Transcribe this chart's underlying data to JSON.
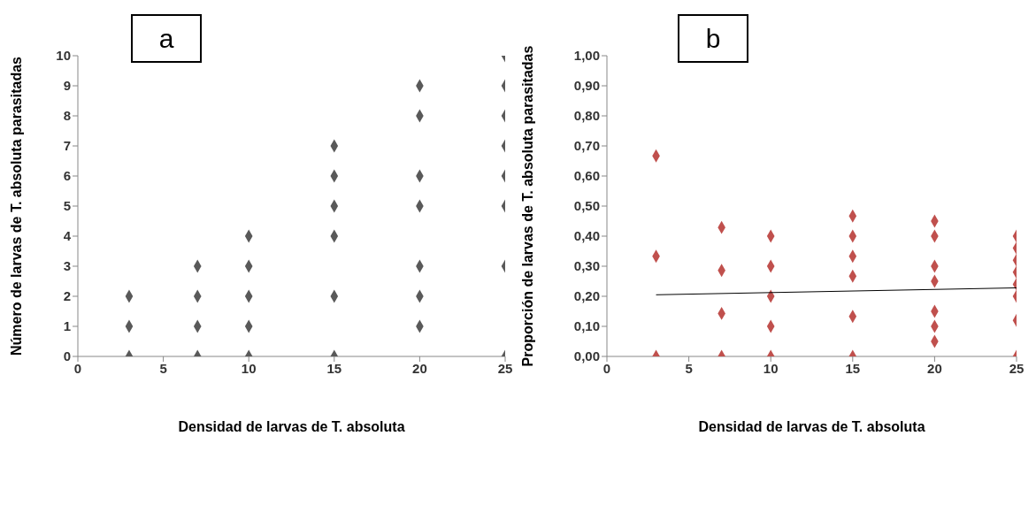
{
  "chart_data": [
    {
      "type": "scatter",
      "xlabel": "Densidad de larvas de T. absoluta",
      "ylabel": "Número  de larvas de T. absoluta parasitadas",
      "annotations": [
        "a"
      ],
      "marker": "diamond",
      "grid": false,
      "xlim": [
        0,
        25
      ],
      "xticks": [
        0,
        5,
        10,
        15,
        20,
        25
      ],
      "ylim": [
        0,
        10
      ],
      "yticks": [
        0,
        1,
        2,
        3,
        4,
        5,
        6,
        7,
        8,
        9,
        10
      ],
      "series": [
        {
          "color": "#595959",
          "x": [
            3,
            3,
            3,
            7,
            7,
            7,
            7,
            10,
            10,
            10,
            10,
            10,
            15,
            15,
            15,
            15,
            15,
            15,
            20,
            20,
            20,
            20,
            20,
            20,
            20,
            25,
            25,
            25,
            25,
            25,
            25,
            25,
            25
          ],
          "values": [
            0,
            1,
            2,
            0,
            1,
            2,
            3,
            0,
            1,
            2,
            3,
            4,
            0,
            2,
            4,
            5,
            6,
            7,
            1,
            2,
            3,
            5,
            6,
            8,
            9,
            0,
            3,
            5,
            6,
            7,
            8,
            9,
            10
          ]
        }
      ]
    },
    {
      "type": "scatter",
      "xlabel": "Densidad de larvas de T. absoluta",
      "ylabel": "Proporción de larvas de T. absoluta parasitadas",
      "annotations": [
        "b"
      ],
      "marker": "diamond",
      "grid": false,
      "xlim": [
        0,
        25
      ],
      "xticks": [
        0,
        5,
        10,
        15,
        20,
        25
      ],
      "ylim": [
        0,
        1
      ],
      "yticks": [
        {
          "value": 0,
          "label": "0,00"
        },
        {
          "value": 0.1,
          "label": "0,10"
        },
        {
          "value": 0.2,
          "label": "0,20"
        },
        {
          "value": 0.3,
          "label": "0,30"
        },
        {
          "value": 0.4,
          "label": "0,40"
        },
        {
          "value": 0.5,
          "label": "0,50"
        },
        {
          "value": 0.6,
          "label": "0,60"
        },
        {
          "value": 0.7,
          "label": "0,70"
        },
        {
          "value": 0.8,
          "label": "0,80"
        },
        {
          "value": 0.9,
          "label": "0,90"
        },
        {
          "value": 1,
          "label": "1,00"
        }
      ],
      "series": [
        {
          "color": "#c0504d",
          "x": [
            3,
            3,
            3,
            7,
            7,
            7,
            7,
            10,
            10,
            10,
            10,
            10,
            15,
            15,
            15,
            15,
            15,
            15,
            20,
            20,
            20,
            20,
            20,
            20,
            20,
            25,
            25,
            25,
            25,
            25,
            25,
            25,
            25
          ],
          "values": [
            0,
            0.333,
            0.667,
            0,
            0.143,
            0.286,
            0.429,
            0,
            0.1,
            0.2,
            0.3,
            0.4,
            0,
            0.133,
            0.267,
            0.333,
            0.4,
            0.467,
            0.05,
            0.1,
            0.15,
            0.25,
            0.3,
            0.4,
            0.45,
            0,
            0.12,
            0.2,
            0.24,
            0.28,
            0.32,
            0.36,
            0.4
          ]
        },
        {
          "type": "line",
          "color": "#000000",
          "x": [
            3,
            25
          ],
          "values": [
            0.205,
            0.228
          ],
          "marker": "none"
        }
      ]
    }
  ]
}
